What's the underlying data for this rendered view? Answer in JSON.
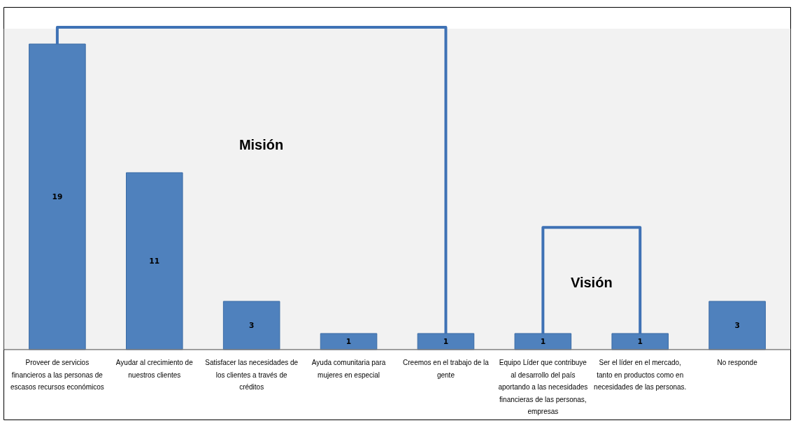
{
  "chart_data": {
    "type": "bar",
    "categories": [
      "Proveer de servicios financieros a las personas de escasos recursos económicos",
      "Ayudar al crecimiento de nuestros clientes",
      "Satisfacer las necesidades de los clientes a través de créditos",
      "Ayuda comunitaria para mujeres en especial",
      "Creemos en el trabajo de la gente",
      "Equipo Líder que contribuye al desarrollo del país aportando a las necesidades financieras de las personas, empresas",
      "Ser el líder en el mercado, tanto en productos como en necesidades de las personas.",
      "No responde"
    ],
    "values": [
      19,
      11,
      3,
      1,
      1,
      1,
      1,
      3
    ],
    "color": "#4f81bd",
    "data_labels": true,
    "annotations": [
      "Misión",
      "Visión"
    ],
    "grid": false
  }
}
